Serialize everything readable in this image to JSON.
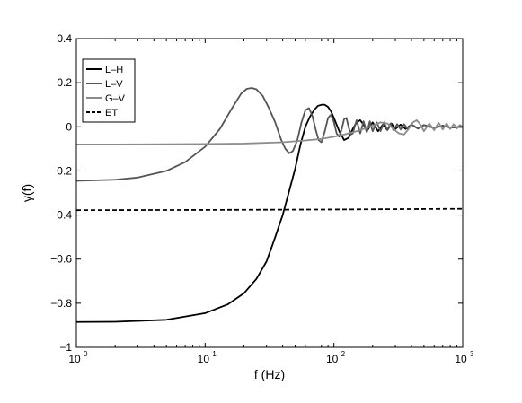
{
  "chart_data": {
    "type": "line",
    "title": "",
    "xlabel": "f (Hz)",
    "ylabel": "γ(f)",
    "x_scale": "log",
    "xlim": [
      1,
      1000
    ],
    "ylim": [
      -1,
      0.4
    ],
    "x_ticks": [
      {
        "value": 1,
        "base": "10",
        "exp": "0"
      },
      {
        "value": 10,
        "base": "10",
        "exp": "1"
      },
      {
        "value": 100,
        "base": "10",
        "exp": "2"
      },
      {
        "value": 1000,
        "base": "10",
        "exp": "3"
      }
    ],
    "y_ticks": [
      {
        "value": 0.4,
        "label": "0.4"
      },
      {
        "value": 0.2,
        "label": "0.2"
      },
      {
        "value": 0,
        "label": "0"
      },
      {
        "value": -0.2,
        "label": "−0.2"
      },
      {
        "value": -0.4,
        "label": "−0.4"
      },
      {
        "value": -0.6,
        "label": "−0.6"
      },
      {
        "value": -0.8,
        "label": "−0.8"
      },
      {
        "value": -1,
        "label": "−1"
      }
    ],
    "grid": false,
    "legend_position": "top-left",
    "series": [
      {
        "name": "L–H",
        "color": "#000000",
        "dash": "solid",
        "x": [
          1,
          2,
          5,
          10,
          15,
          20,
          25,
          30,
          35,
          40,
          45,
          50,
          55,
          60,
          65,
          70,
          75,
          80,
          85,
          90,
          95,
          100,
          110,
          120,
          130,
          140,
          150,
          160,
          170,
          180,
          200,
          220,
          240,
          260,
          280,
          300,
          330,
          360,
          400,
          450,
          500,
          600,
          700,
          800,
          1000
        ],
        "y": [
          -0.885,
          -0.884,
          -0.875,
          -0.845,
          -0.805,
          -0.755,
          -0.69,
          -0.61,
          -0.5,
          -0.4,
          -0.29,
          -0.19,
          -0.08,
          0.0,
          0.045,
          0.075,
          0.095,
          0.1,
          0.1,
          0.09,
          0.07,
          0.04,
          -0.02,
          -0.06,
          -0.05,
          -0.01,
          0.02,
          0.03,
          0.01,
          -0.02,
          0.02,
          -0.02,
          0.01,
          -0.015,
          0.015,
          -0.01,
          0.01,
          -0.01,
          0.01,
          -0.008,
          0.008,
          -0.005,
          0.005,
          -0.004,
          0.0
        ]
      },
      {
        "name": "L–V",
        "color": "#555555",
        "dash": "solid",
        "x": [
          1,
          2,
          3,
          5,
          7,
          10,
          13,
          16,
          19,
          21,
          23,
          25,
          28,
          31,
          35,
          39,
          42,
          45,
          48,
          52,
          56,
          60,
          64,
          68,
          72,
          76,
          80,
          85,
          90,
          95,
          100,
          105,
          110,
          115,
          120,
          125,
          130,
          135,
          140,
          150,
          160,
          170,
          180,
          190,
          200,
          215,
          230,
          245,
          260,
          275,
          290,
          310,
          330,
          350,
          375,
          400,
          450,
          500,
          600,
          700,
          800,
          1000
        ],
        "y": [
          -0.245,
          -0.24,
          -0.23,
          -0.2,
          -0.16,
          -0.09,
          -0.01,
          0.08,
          0.15,
          0.172,
          0.176,
          0.17,
          0.14,
          0.09,
          0.02,
          -0.06,
          -0.1,
          -0.12,
          -0.11,
          -0.06,
          0.02,
          0.075,
          0.085,
          0.05,
          -0.01,
          -0.06,
          -0.07,
          -0.02,
          0.04,
          0.055,
          0.02,
          -0.03,
          -0.045,
          -0.01,
          0.035,
          0.04,
          0.0,
          -0.035,
          -0.03,
          0.03,
          -0.03,
          0.025,
          -0.025,
          0.025,
          -0.02,
          0.02,
          -0.02,
          0.02,
          -0.015,
          0.015,
          -0.015,
          0.012,
          -0.012,
          0.012,
          -0.01,
          0.01,
          -0.008,
          0.008,
          -0.006,
          0.006,
          -0.004,
          0.0
        ]
      },
      {
        "name": "G–V",
        "color": "#8c8c8c",
        "dash": "solid",
        "x": [
          1,
          2,
          5,
          10,
          20,
          40,
          60,
          80,
          100,
          120,
          150,
          180,
          200,
          230,
          260,
          290,
          320,
          350,
          380,
          410,
          440,
          470,
          500,
          550,
          600,
          650,
          700,
          750,
          800,
          850,
          900,
          950,
          1000
        ],
        "y": [
          -0.08,
          -0.08,
          -0.079,
          -0.078,
          -0.076,
          -0.07,
          -0.062,
          -0.055,
          -0.045,
          -0.035,
          -0.02,
          -0.005,
          0.005,
          0.02,
          0.015,
          -0.01,
          -0.03,
          -0.035,
          -0.01,
          0.02,
          0.03,
          0.01,
          -0.02,
          0.015,
          -0.015,
          0.018,
          -0.012,
          0.015,
          -0.01,
          0.012,
          -0.008,
          0.008,
          0.0
        ]
      },
      {
        "name": "ET",
        "color": "#000000",
        "dash": "dashed",
        "x": [
          1,
          10,
          100,
          1000
        ],
        "y": [
          -0.378,
          -0.377,
          -0.375,
          -0.372
        ]
      }
    ]
  }
}
